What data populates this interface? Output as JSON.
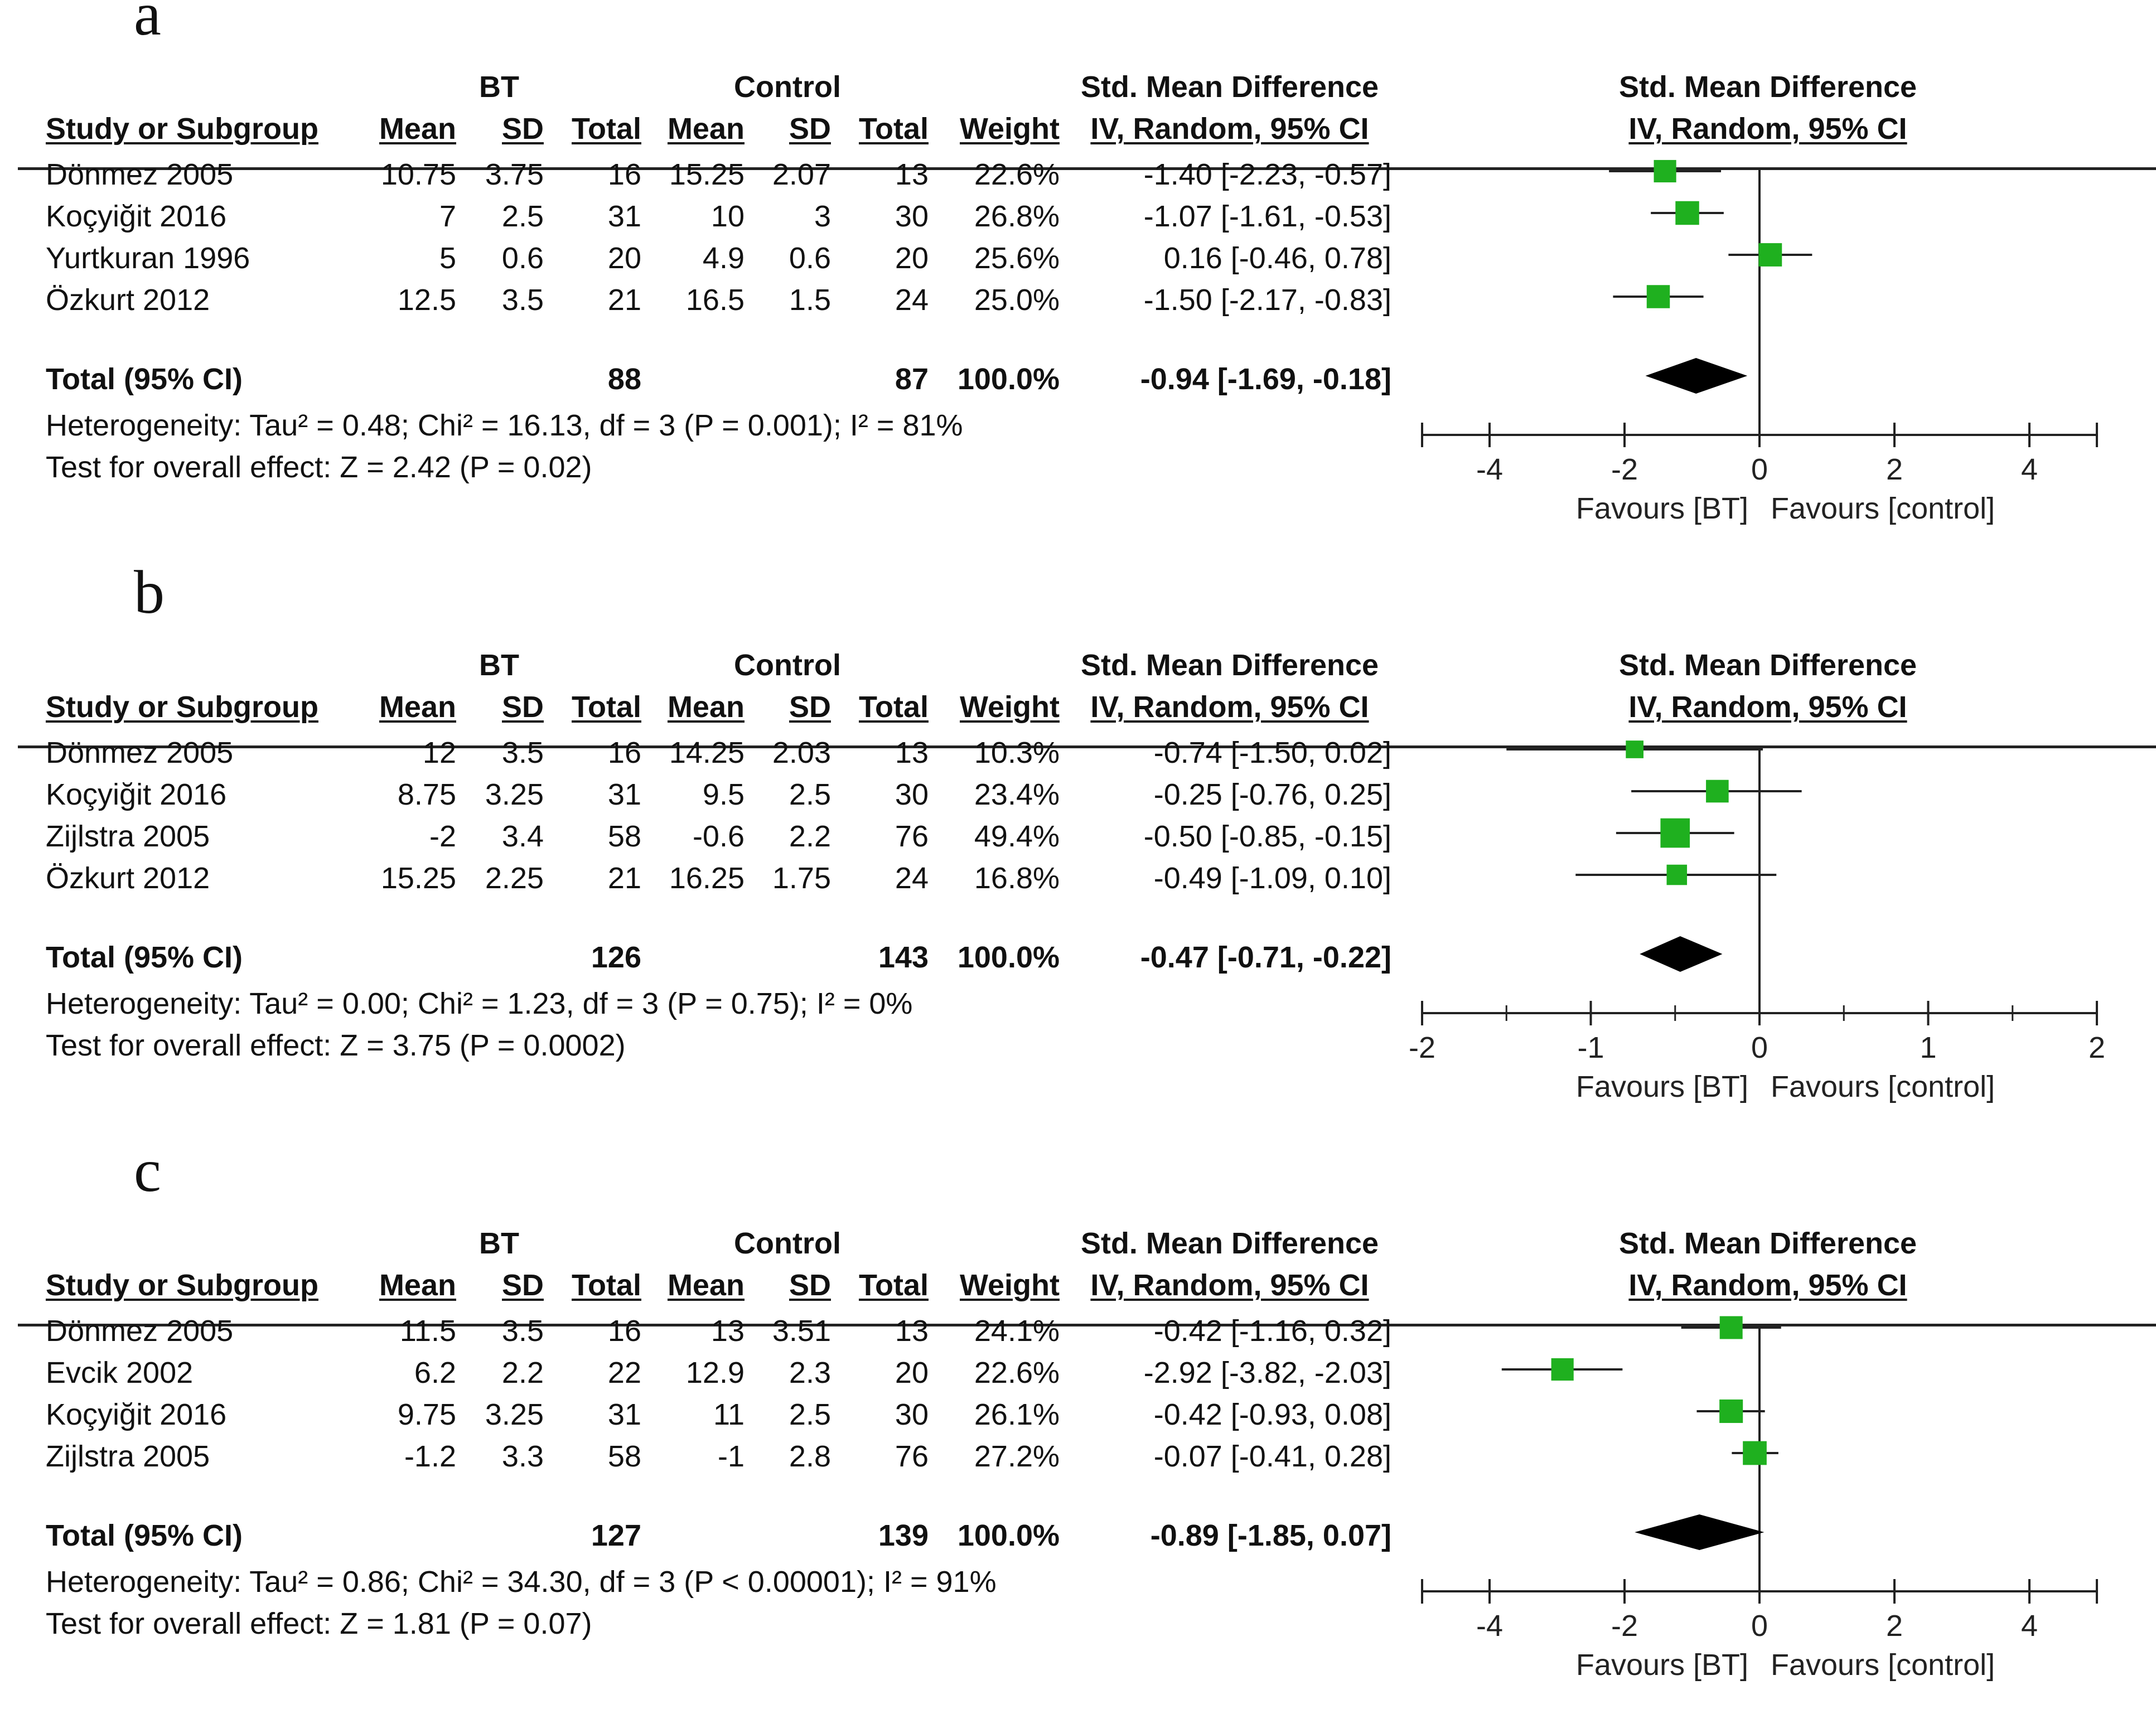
{
  "columns": {
    "group_bt": "BT",
    "group_control": "Control",
    "smd_header": "Std. Mean Difference",
    "study": "Study or Subgroup",
    "mean": "Mean",
    "sd": "SD",
    "total": "Total",
    "weight": "Weight",
    "method": "IV, Random, 95% CI"
  },
  "panels": [
    {
      "letter": "a",
      "rows": [
        {
          "study": "Dönmez 2005",
          "bt_mean": "10.75",
          "bt_sd": "3.75",
          "bt_total": "16",
          "c_mean": "15.25",
          "c_sd": "2.07",
          "c_total": "13",
          "weight": "22.6%",
          "ci": "-1.40 [-2.23, -0.57]"
        },
        {
          "study": "Koçyiğit 2016",
          "bt_mean": "7",
          "bt_sd": "2.5",
          "bt_total": "31",
          "c_mean": "10",
          "c_sd": "3",
          "c_total": "30",
          "weight": "26.8%",
          "ci": "-1.07 [-1.61, -0.53]"
        },
        {
          "study": "Yurtkuran 1996",
          "bt_mean": "5",
          "bt_sd": "0.6",
          "bt_total": "20",
          "c_mean": "4.9",
          "c_sd": "0.6",
          "c_total": "20",
          "weight": "25.6%",
          "ci": "0.16 [-0.46, 0.78]"
        },
        {
          "study": "Özkurt 2012",
          "bt_mean": "12.5",
          "bt_sd": "3.5",
          "bt_total": "21",
          "c_mean": "16.5",
          "c_sd": "1.5",
          "c_total": "24",
          "weight": "25.0%",
          "ci": "-1.50 [-2.17, -0.83]"
        }
      ],
      "total": {
        "label": "Total (95% CI)",
        "bt_total": "88",
        "c_total": "87",
        "weight": "100.0%",
        "ci": "-0.94 [-1.69, -0.18]"
      },
      "heterogeneity": "Heterogeneity: Tau² = 0.48; Chi² = 16.13, df = 3 (P = 0.001); I² = 81%",
      "overall": "Test for overall effect: Z = 2.42 (P = 0.02)"
    },
    {
      "letter": "b",
      "rows": [
        {
          "study": "Dönmez 2005",
          "bt_mean": "12",
          "bt_sd": "3.5",
          "bt_total": "16",
          "c_mean": "14.25",
          "c_sd": "2.03",
          "c_total": "13",
          "weight": "10.3%",
          "ci": "-0.74 [-1.50, 0.02]"
        },
        {
          "study": "Koçyiğit 2016",
          "bt_mean": "8.75",
          "bt_sd": "3.25",
          "bt_total": "31",
          "c_mean": "9.5",
          "c_sd": "2.5",
          "c_total": "30",
          "weight": "23.4%",
          "ci": "-0.25 [-0.76, 0.25]"
        },
        {
          "study": "Zijlstra 2005",
          "bt_mean": "-2",
          "bt_sd": "3.4",
          "bt_total": "58",
          "c_mean": "-0.6",
          "c_sd": "2.2",
          "c_total": "76",
          "weight": "49.4%",
          "ci": "-0.50 [-0.85, -0.15]"
        },
        {
          "study": "Özkurt 2012",
          "bt_mean": "15.25",
          "bt_sd": "2.25",
          "bt_total": "21",
          "c_mean": "16.25",
          "c_sd": "1.75",
          "c_total": "24",
          "weight": "16.8%",
          "ci": "-0.49 [-1.09, 0.10]"
        }
      ],
      "total": {
        "label": "Total (95% CI)",
        "bt_total": "126",
        "c_total": "143",
        "weight": "100.0%",
        "ci": "-0.47 [-0.71, -0.22]"
      },
      "heterogeneity": "Heterogeneity: Tau² = 0.00; Chi² = 1.23, df = 3 (P = 0.75); I² = 0%",
      "overall": "Test for overall effect: Z = 3.75 (P = 0.0002)"
    },
    {
      "letter": "c",
      "rows": [
        {
          "study": "Dönmez 2005",
          "bt_mean": "11.5",
          "bt_sd": "3.5",
          "bt_total": "16",
          "c_mean": "13",
          "c_sd": "3.51",
          "c_total": "13",
          "weight": "24.1%",
          "ci": "-0.42 [-1.16, 0.32]"
        },
        {
          "study": "Evcik 2002",
          "bt_mean": "6.2",
          "bt_sd": "2.2",
          "bt_total": "22",
          "c_mean": "12.9",
          "c_sd": "2.3",
          "c_total": "20",
          "weight": "22.6%",
          "ci": "-2.92 [-3.82, -2.03]"
        },
        {
          "study": "Koçyiğit 2016",
          "bt_mean": "9.75",
          "bt_sd": "3.25",
          "bt_total": "31",
          "c_mean": "11",
          "c_sd": "2.5",
          "c_total": "30",
          "weight": "26.1%",
          "ci": "-0.42 [-0.93, 0.08]"
        },
        {
          "study": "Zijlstra 2005",
          "bt_mean": "-1.2",
          "bt_sd": "3.3",
          "bt_total": "58",
          "c_mean": "-1",
          "c_sd": "2.8",
          "c_total": "76",
          "weight": "27.2%",
          "ci": "-0.07 [-0.41, 0.28]"
        }
      ],
      "total": {
        "label": "Total (95% CI)",
        "bt_total": "127",
        "c_total": "139",
        "weight": "100.0%",
        "ci": "-0.89 [-1.85, 0.07]"
      },
      "heterogeneity": "Heterogeneity: Tau² = 0.86; Chi² = 34.30, df = 3 (P < 0.00001); I² = 91%",
      "overall": "Test for overall effect: Z = 1.81 (P = 0.07)"
    }
  ],
  "colors": {
    "marker": "#1fb01f",
    "diamond": "#000000",
    "line": "#222222"
  },
  "chart_data": [
    {
      "type": "forest",
      "title": "Std. Mean Difference IV, Random, 95% CI",
      "xlim": [
        -5,
        5
      ],
      "ticks": [
        -4,
        -2,
        0,
        2,
        4
      ],
      "tick_labels": [
        "-4",
        "-2",
        "0",
        "2",
        "4"
      ],
      "xlabel_left": "Favours [BT]",
      "xlabel_right": "Favours [control]",
      "studies": [
        {
          "name": "Dönmez 2005",
          "est": -1.4,
          "lo": -2.23,
          "hi": -0.57,
          "weight": 22.6
        },
        {
          "name": "Koçyiğit 2016",
          "est": -1.07,
          "lo": -1.61,
          "hi": -0.53,
          "weight": 26.8
        },
        {
          "name": "Yurtkuran 1996",
          "est": 0.16,
          "lo": -0.46,
          "hi": 0.78,
          "weight": 25.6
        },
        {
          "name": "Özkurt 2012",
          "est": -1.5,
          "lo": -2.17,
          "hi": -0.83,
          "weight": 25.0
        }
      ],
      "total": {
        "est": -0.94,
        "lo": -1.69,
        "hi": -0.18
      }
    },
    {
      "type": "forest",
      "title": "Std. Mean Difference IV, Random, 95% CI",
      "xlim": [
        -2,
        2
      ],
      "ticks": [
        -2,
        -1,
        0,
        1,
        2
      ],
      "tick_labels": [
        "-2",
        "-1",
        "0",
        "1",
        "2"
      ],
      "xlabel_left": "Favours [BT]",
      "xlabel_right": "Favours [control]",
      "studies": [
        {
          "name": "Dönmez 2005",
          "est": -0.74,
          "lo": -1.5,
          "hi": 0.02,
          "weight": 10.3
        },
        {
          "name": "Koçyiğit 2016",
          "est": -0.25,
          "lo": -0.76,
          "hi": 0.25,
          "weight": 23.4
        },
        {
          "name": "Zijlstra 2005",
          "est": -0.5,
          "lo": -0.85,
          "hi": -0.15,
          "weight": 49.4
        },
        {
          "name": "Özkurt 2012",
          "est": -0.49,
          "lo": -1.09,
          "hi": 0.1,
          "weight": 16.8
        }
      ],
      "total": {
        "est": -0.47,
        "lo": -0.71,
        "hi": -0.22
      }
    },
    {
      "type": "forest",
      "title": "Std. Mean Difference IV, Random, 95% CI",
      "xlim": [
        -5,
        5
      ],
      "ticks": [
        -4,
        -2,
        0,
        2,
        4
      ],
      "tick_labels": [
        "-4",
        "-2",
        "0",
        "2",
        "4"
      ],
      "xlabel_left": "Favours [BT]",
      "xlabel_right": "Favours [control]",
      "studies": [
        {
          "name": "Dönmez 2005",
          "est": -0.42,
          "lo": -1.16,
          "hi": 0.32,
          "weight": 24.1
        },
        {
          "name": "Evcik 2002",
          "est": -2.92,
          "lo": -3.82,
          "hi": -2.03,
          "weight": 22.6
        },
        {
          "name": "Koçyiğit 2016",
          "est": -0.42,
          "lo": -0.93,
          "hi": 0.08,
          "weight": 26.1
        },
        {
          "name": "Zijlstra 2005",
          "est": -0.07,
          "lo": -0.41,
          "hi": 0.28,
          "weight": 27.2
        }
      ],
      "total": {
        "est": -0.89,
        "lo": -1.85,
        "hi": 0.07
      }
    }
  ]
}
